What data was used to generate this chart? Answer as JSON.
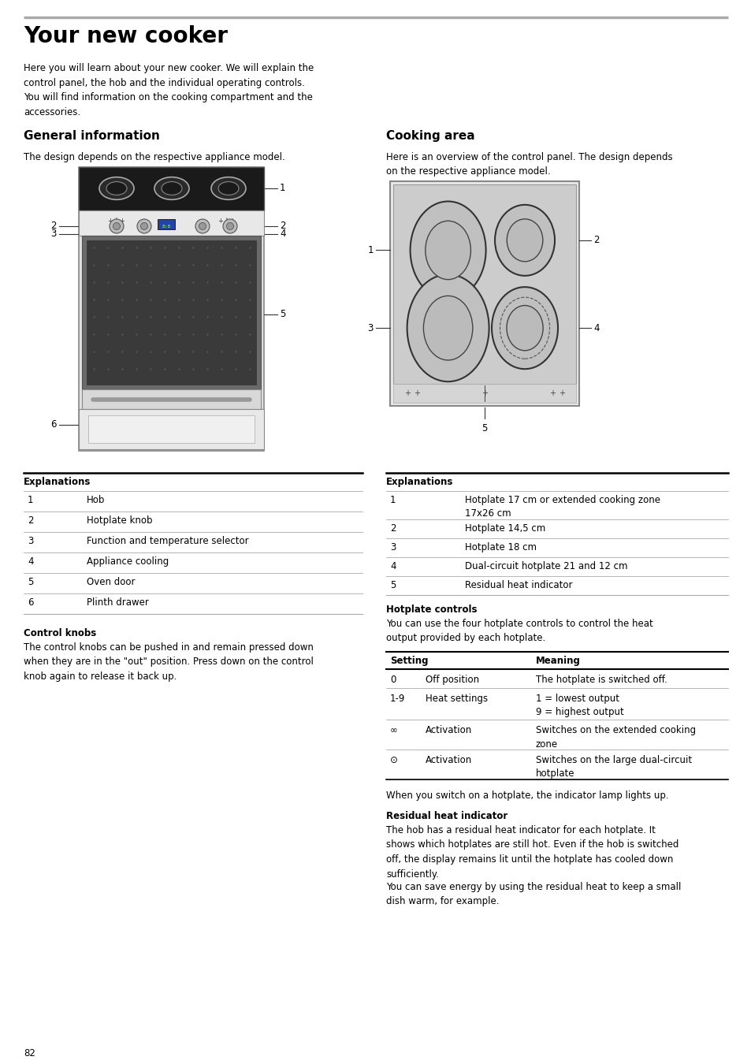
{
  "title": "Your new cooker",
  "page_number": "82",
  "intro_text": "Here you will learn about your new cooker. We will explain the\ncontrol panel, the hob and the individual operating controls.\nYou will find information on the cooking compartment and the\naccessories.",
  "section1_title": "General information",
  "section1_desc": "The design depends on the respective appliance model.",
  "section2_title": "Cooking area",
  "section2_desc": "Here is an overview of the control panel. The design depends\non the respective appliance model.",
  "left_table_title": "Explanations",
  "left_table_rows": [
    [
      "1",
      "Hob"
    ],
    [
      "2",
      "Hotplate knob"
    ],
    [
      "3",
      "Function and temperature selector"
    ],
    [
      "4",
      "Appliance cooling"
    ],
    [
      "5",
      "Oven door"
    ],
    [
      "6",
      "Plinth drawer"
    ]
  ],
  "right_table_title": "Explanations",
  "right_table_rows": [
    [
      "1",
      "Hotplate 17 cm or extended cooking zone\n17x26 cm"
    ],
    [
      "2",
      "Hotplate 14,5 cm"
    ],
    [
      "3",
      "Hotplate 18 cm"
    ],
    [
      "4",
      "Dual-circuit hotplate 21 and 12 cm"
    ],
    [
      "5",
      "Residual heat indicator"
    ]
  ],
  "control_knobs_title": "Control knobs",
  "control_knobs_text": "The control knobs can be pushed in and remain pressed down\nwhen they are in the \"out\" position. Press down on the control\nknob again to release it back up.",
  "hotplate_controls_title": "Hotplate controls",
  "hotplate_controls_text": "You can use the four hotplate controls to control the heat\noutput provided by each hotplate.",
  "settings_table_headers": [
    "Setting",
    "Meaning"
  ],
  "settings_table_rows": [
    [
      "0",
      "Off position",
      "The hotplate is switched off."
    ],
    [
      "1-9",
      "Heat settings",
      "1 = lowest output\n9 = highest output"
    ],
    [
      "∞",
      "Activation",
      "Switches on the extended cooking\nzone"
    ],
    [
      "⊙",
      "Activation",
      "Switches on the large dual-circuit\nhotplate"
    ]
  ],
  "switch_text": "When you switch on a hotplate, the indicator lamp lights up.",
  "residual_title": "Residual heat indicator",
  "residual_text1": "The hob has a residual heat indicator for each hotplate. It\nshows which hotplates are still hot. Even if the hob is switched\noff, the display remains lit until the hotplate has cooled down\nsufficiently.",
  "residual_text2": "You can save energy by using the residual heat to keep a small\ndish warm, for example.",
  "bg_color": "#ffffff",
  "text_color": "#000000"
}
